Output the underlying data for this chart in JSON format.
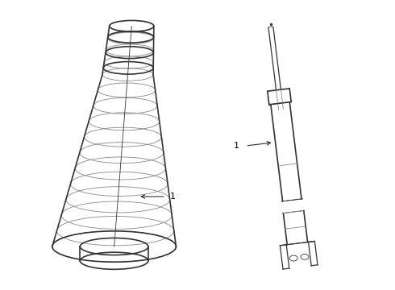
{
  "bg_color": "#ffffff",
  "line_color": "#888888",
  "dark_line": "#333333",
  "label_color": "#000000",
  "fig_width": 4.9,
  "fig_height": 3.6,
  "dpi": 100,
  "label1_boot": "1",
  "label1_shock": "1"
}
